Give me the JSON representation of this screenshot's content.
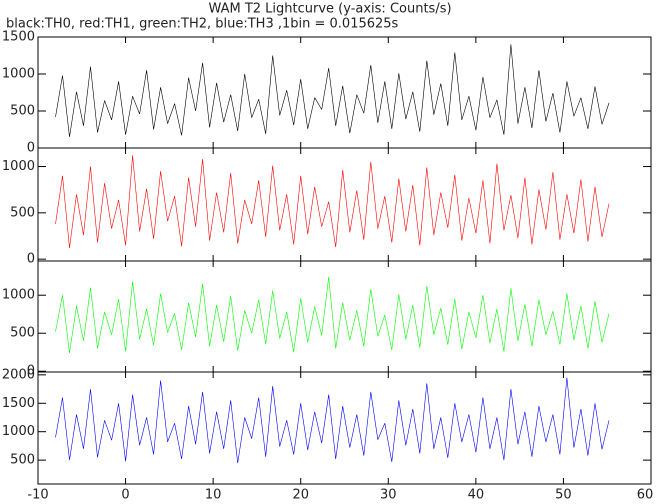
{
  "chart_data": {
    "type": "line",
    "title": "WAM T2 Lightcurve (y-axis: Counts/s)",
    "subtitle": "black:TH0, red:TH1, green:TH2, blue:TH3 ,1bin = 0.015625s",
    "xlim": [
      -10,
      60
    ],
    "xticks": [
      -10,
      0,
      10,
      20,
      30,
      40,
      50,
      60
    ],
    "x": [
      -8,
      -7.2,
      -6.4,
      -5.6,
      -4.8,
      -4,
      -3.2,
      -2.4,
      -1.6,
      -0.8,
      0,
      0.8,
      1.6,
      2.4,
      3.2,
      4,
      4.8,
      5.6,
      6.4,
      7.2,
      8,
      8.8,
      9.6,
      10.4,
      11.2,
      12,
      12.8,
      13.6,
      14.4,
      15.2,
      16,
      16.8,
      17.6,
      18.4,
      19.2,
      20,
      20.8,
      21.6,
      22.4,
      23.2,
      24,
      24.8,
      25.6,
      26.4,
      27.2,
      28,
      28.8,
      29.6,
      30.4,
      31.2,
      32,
      32.8,
      33.6,
      34.4,
      35.2,
      36,
      36.8,
      37.6,
      38.4,
      39.2,
      40,
      40.8,
      41.6,
      42.4,
      43.2,
      44,
      44.8,
      45.6,
      46.4,
      47.2,
      48,
      48.8,
      49.6,
      50.4,
      51.2,
      52,
      52.8,
      53.6,
      54.4,
      55.2
    ],
    "panels": [
      {
        "ylim": [
          0,
          1500
        ],
        "yticks": [
          0,
          500,
          1000,
          1500
        ],
        "series": [
          {
            "color": "#000000",
            "values": [
              420,
              980,
              150,
              760,
              300,
              1100,
              210,
              640,
              380,
              900,
              180,
              700,
              460,
              1050,
              250,
              820,
              330,
              600,
              170,
              950,
              500,
              1150,
              280,
              880,
              350,
              720,
              230,
              1000,
              410,
              660,
              190,
              1250,
              440,
              780,
              310,
              930,
              260,
              680,
              520,
              1080,
              300,
              840,
              200,
              720,
              470,
              1120,
              340,
              900,
              260,
              1010,
              390,
              760,
              220,
              1180,
              450,
              870,
              300,
              1290,
              380,
              700,
              240,
              960,
              410,
              650,
              180,
              1400,
              330,
              820,
              270,
              1050,
              360,
              740,
              210,
              900,
              430,
              680,
              260,
              830,
              320,
              610
            ]
          }
        ]
      },
      {
        "ylim": [
          -20,
          1200
        ],
        "yticks": [
          0,
          500,
          1000
        ],
        "series": [
          {
            "color": "#ff0000",
            "values": [
              380,
              900,
              120,
              700,
              260,
              1000,
              180,
              820,
              330,
              640,
              150,
              1120,
              300,
              760,
              220,
              950,
              410,
              680,
              140,
              880,
              350,
              1080,
              200,
              720,
              290,
              930,
              170,
              640,
              380,
              850,
              240,
              1010,
              310,
              700,
              160,
              900,
              270,
              780,
              350,
              620,
              130,
              960,
              290,
              740,
              210,
              1050,
              330,
              680,
              180,
              870,
              300,
              800,
              150,
              990,
              260,
              720,
              340,
              910,
              200,
              660,
              280,
              850,
              170,
              1030,
              310,
              690,
              230,
              880,
              160,
              750,
              320,
              940,
              210,
              700,
              280,
              860,
              190,
              780,
              240,
              600
            ]
          }
        ]
      },
      {
        "ylim": [
          -10,
          1450
        ],
        "yticks": [
          0,
          500,
          1000
        ],
        "series": [
          {
            "color": "#00ff00",
            "values": [
              520,
              1000,
              240,
              860,
              400,
              1100,
              300,
              780,
              480,
              950,
              260,
              1180,
              420,
              820,
              340,
              1020,
              510,
              760,
              280,
              900,
              450,
              1150,
              330,
              870,
              390,
              990,
              270,
              800,
              500,
              940,
              360,
              1060,
              430,
              780,
              250,
              960,
              380,
              850,
              470,
              1240,
              300,
              900,
              410,
              800,
              330,
              1080,
              460,
              740,
              280,
              1010,
              420,
              870,
              310,
              1120,
              480,
              830,
              350,
              950,
              290,
              780,
              440,
              1000,
              370,
              820,
              260,
              1090,
              400,
              880,
              330,
              940,
              480,
              790,
              350,
              1020,
              410,
              860,
              300,
              920,
              380,
              760
            ]
          }
        ]
      },
      {
        "ylim": [
          80,
          2050
        ],
        "yticks": [
          500,
          1000,
          1500,
          2000
        ],
        "series": [
          {
            "color": "#0000ff",
            "values": [
              900,
              1600,
              500,
              1300,
              700,
              1750,
              550,
              1200,
              850,
              1500,
              480,
              1650,
              760,
              1250,
              600,
              1900,
              820,
              1150,
              520,
              1450,
              780,
              1700,
              620,
              1350,
              700,
              1550,
              450,
              1250,
              880,
              1600,
              560,
              1800,
              740,
              1200,
              600,
              1500,
              680,
              1350,
              800,
              1650,
              520,
              1450,
              720,
              1300,
              580,
              1700,
              860,
              1150,
              470,
              1550,
              760,
              1400,
              620,
              1850,
              700,
              1250,
              540,
              1500,
              820,
              1300,
              640,
              1600,
              700,
              1250,
              500,
              1750,
              780,
              1350,
              560,
              1450,
              820,
              1300,
              600,
              1950,
              720,
              1400,
              580,
              1500,
              690,
              1200
            ]
          }
        ]
      }
    ]
  }
}
